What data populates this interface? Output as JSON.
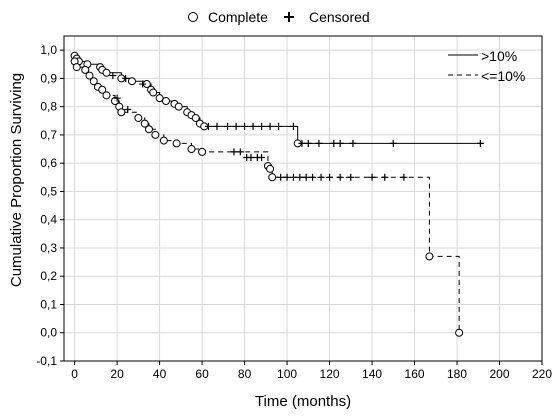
{
  "chart_data": {
    "type": "line",
    "subtype": "kaplan-meier step",
    "xlabel": "Time (months)",
    "ylabel": "Cumulative Proportion Surviving",
    "xlim": [
      -5,
      220
    ],
    "ylim": [
      -0.1,
      1.05
    ],
    "xticks": [
      0,
      20,
      40,
      60,
      80,
      100,
      120,
      140,
      160,
      180,
      200,
      220
    ],
    "yticks": [
      "-0,1",
      "0,0",
      "0,1",
      "0,2",
      "0,3",
      "0,4",
      "0,5",
      "0,6",
      "0,7",
      "0,8",
      "0,9",
      "1,0"
    ],
    "grid": true,
    "marker_legend": {
      "position": "top",
      "items": [
        {
          "symbol": "circle",
          "label": "Complete"
        },
        {
          "symbol": "plus",
          "label": "Censored"
        }
      ]
    },
    "series_legend": {
      "position": "top-right",
      "items": [
        {
          "label": ">10%",
          "style": "solid"
        },
        {
          "label": "<=10%",
          "style": "dashed"
        }
      ]
    },
    "series": [
      {
        "name": ">10%",
        "style": "solid",
        "steps": [
          [
            0,
            0.98
          ],
          [
            1,
            0.97
          ],
          [
            2,
            0.96
          ],
          [
            6,
            0.95
          ],
          [
            12,
            0.94
          ],
          [
            13,
            0.93
          ],
          [
            15,
            0.92
          ],
          [
            22,
            0.9
          ],
          [
            27,
            0.89
          ],
          [
            34,
            0.88
          ],
          [
            36,
            0.86
          ],
          [
            37,
            0.85
          ],
          [
            40,
            0.83
          ],
          [
            43,
            0.82
          ],
          [
            47,
            0.81
          ],
          [
            49,
            0.8
          ],
          [
            53,
            0.78
          ],
          [
            55,
            0.77
          ],
          [
            57,
            0.76
          ],
          [
            59,
            0.74
          ],
          [
            61,
            0.73
          ],
          [
            105,
            0.67
          ],
          [
            192,
            0.67
          ]
        ],
        "events": [
          [
            0,
            0.98
          ],
          [
            1,
            0.97
          ],
          [
            2,
            0.96
          ],
          [
            6,
            0.95
          ],
          [
            12,
            0.94
          ],
          [
            13,
            0.93
          ],
          [
            15,
            0.92
          ],
          [
            22,
            0.9
          ],
          [
            27,
            0.89
          ],
          [
            34,
            0.88
          ],
          [
            36,
            0.86
          ],
          [
            37,
            0.85
          ],
          [
            40,
            0.83
          ],
          [
            43,
            0.82
          ],
          [
            47,
            0.81
          ],
          [
            49,
            0.8
          ],
          [
            53,
            0.78
          ],
          [
            55,
            0.77
          ],
          [
            57,
            0.76
          ],
          [
            59,
            0.74
          ],
          [
            61,
            0.73
          ],
          [
            105,
            0.67
          ]
        ],
        "censored": [
          [
            18,
            0.91
          ],
          [
            24,
            0.9
          ],
          [
            32,
            0.88
          ],
          [
            63,
            0.73
          ],
          [
            67,
            0.73
          ],
          [
            72,
            0.73
          ],
          [
            76,
            0.73
          ],
          [
            80,
            0.73
          ],
          [
            84,
            0.73
          ],
          [
            88,
            0.73
          ],
          [
            92,
            0.73
          ],
          [
            96,
            0.73
          ],
          [
            103,
            0.73
          ],
          [
            107,
            0.67
          ],
          [
            110,
            0.67
          ],
          [
            115,
            0.67
          ],
          [
            122,
            0.67
          ],
          [
            125,
            0.67
          ],
          [
            131,
            0.67
          ],
          [
            150,
            0.67
          ],
          [
            191,
            0.67
          ]
        ]
      },
      {
        "name": "<=10%",
        "style": "dashed",
        "steps": [
          [
            0,
            0.96
          ],
          [
            1,
            0.94
          ],
          [
            5,
            0.93
          ],
          [
            7,
            0.91
          ],
          [
            9,
            0.89
          ],
          [
            11,
            0.87
          ],
          [
            13,
            0.86
          ],
          [
            15,
            0.84
          ],
          [
            19,
            0.82
          ],
          [
            21,
            0.8
          ],
          [
            22,
            0.78
          ],
          [
            30,
            0.76
          ],
          [
            33,
            0.74
          ],
          [
            35,
            0.72
          ],
          [
            38,
            0.7
          ],
          [
            42,
            0.68
          ],
          [
            48,
            0.67
          ],
          [
            55,
            0.65
          ],
          [
            60,
            0.64
          ],
          [
            91,
            0.59
          ],
          [
            92,
            0.58
          ],
          [
            93,
            0.55
          ],
          [
            167,
            0.27
          ],
          [
            181,
            0.0
          ]
        ],
        "events": [
          [
            0,
            0.96
          ],
          [
            1,
            0.94
          ],
          [
            5,
            0.93
          ],
          [
            7,
            0.91
          ],
          [
            9,
            0.89
          ],
          [
            11,
            0.87
          ],
          [
            13,
            0.86
          ],
          [
            15,
            0.84
          ],
          [
            19,
            0.82
          ],
          [
            21,
            0.8
          ],
          [
            22,
            0.78
          ],
          [
            30,
            0.76
          ],
          [
            33,
            0.74
          ],
          [
            35,
            0.72
          ],
          [
            38,
            0.7
          ],
          [
            42,
            0.68
          ],
          [
            48,
            0.67
          ],
          [
            55,
            0.65
          ],
          [
            60,
            0.64
          ],
          [
            91,
            0.59
          ],
          [
            92,
            0.58
          ],
          [
            93,
            0.55
          ],
          [
            167,
            0.27
          ],
          [
            181,
            0.0
          ]
        ],
        "censored": [
          [
            20,
            0.83
          ],
          [
            25,
            0.79
          ],
          [
            75,
            0.64
          ],
          [
            78,
            0.64
          ],
          [
            81,
            0.62
          ],
          [
            83,
            0.62
          ],
          [
            86,
            0.62
          ],
          [
            88,
            0.62
          ],
          [
            97,
            0.55
          ],
          [
            100,
            0.55
          ],
          [
            103,
            0.55
          ],
          [
            106,
            0.55
          ],
          [
            109,
            0.55
          ],
          [
            112,
            0.55
          ],
          [
            116,
            0.55
          ],
          [
            120,
            0.55
          ],
          [
            125,
            0.55
          ],
          [
            130,
            0.55
          ],
          [
            140,
            0.55
          ],
          [
            146,
            0.55
          ],
          [
            155,
            0.55
          ]
        ]
      }
    ]
  }
}
